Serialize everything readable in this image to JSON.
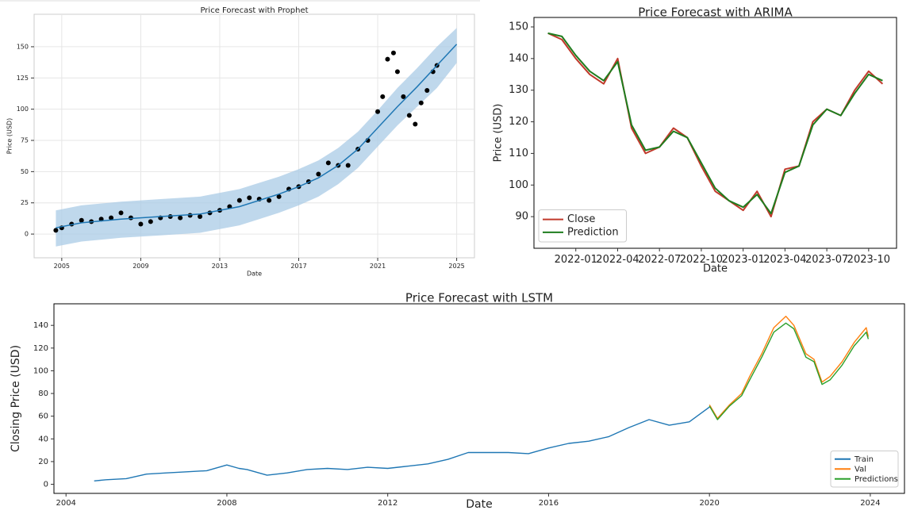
{
  "chart_data": [
    {
      "type": "forecast",
      "title": "Price Forecast with Prophet",
      "x_label": "Date",
      "y_label": "Price (USD)",
      "xlim": [
        2003.6,
        2025.9
      ],
      "xticks": [
        2005,
        2009,
        2013,
        2017,
        2021,
        2025
      ],
      "ylim": [
        -19,
        176
      ],
      "yticks": [
        0,
        25,
        50,
        75,
        100,
        125,
        150
      ],
      "grid": true,
      "actual": {
        "color": "#000000",
        "x": [
          2004.7,
          2005,
          2005.5,
          2006,
          2006.5,
          2007,
          2007.5,
          2008,
          2008.5,
          2009,
          2009.5,
          2010,
          2010.5,
          2011,
          2011.5,
          2012,
          2012.5,
          2013,
          2013.5,
          2014,
          2014.5,
          2015,
          2015.5,
          2016,
          2016.5,
          2017,
          2017.5,
          2018,
          2018.5,
          2019,
          2019.5,
          2020,
          2020.5,
          2021,
          2021.25,
          2021.5,
          2021.8,
          2022,
          2022.3,
          2022.6,
          2022.9,
          2023.2,
          2023.5,
          2023.8,
          2024
        ],
        "values": [
          3,
          5,
          8,
          11,
          10,
          12,
          13,
          17,
          13,
          8,
          10,
          13,
          14,
          13,
          15,
          14,
          17,
          19,
          22,
          27,
          29,
          28,
          27,
          30,
          36,
          38,
          42,
          48,
          57,
          55,
          55,
          68,
          75,
          98,
          110,
          140,
          145,
          130,
          110,
          95,
          88,
          105,
          115,
          130,
          135
        ]
      },
      "forecast": {
        "color": "#1f77b4",
        "band_color": "#a9cbe6",
        "x": [
          2004.7,
          2006,
          2008,
          2010,
          2012,
          2014,
          2015,
          2016,
          2017,
          2018,
          2019,
          2020,
          2021,
          2022,
          2023,
          2024,
          2025
        ],
        "values": [
          5,
          9,
          12,
          14,
          16,
          22,
          27,
          32,
          38,
          45,
          55,
          68,
          85,
          102,
          118,
          135,
          152
        ],
        "lower": [
          -10,
          -6,
          -3,
          -1,
          1,
          7,
          12,
          17,
          23,
          30,
          40,
          53,
          70,
          87,
          102,
          117,
          137
        ],
        "upper": [
          19,
          23,
          26,
          28,
          30,
          36,
          41,
          46,
          52,
          59,
          69,
          82,
          99,
          117,
          133,
          150,
          165
        ]
      }
    },
    {
      "type": "line",
      "title": "Price Forecast with ARIMA",
      "x_label": "Date",
      "y_label": "Price (USD)",
      "xlim": [
        "2021-10",
        "2023-12"
      ],
      "xticks": [
        "2022-01",
        "2022-04",
        "2022-07",
        "2022-10",
        "2023-01",
        "2023-04",
        "2023-07",
        "2023-10"
      ],
      "ylim": [
        80,
        153
      ],
      "yticks": [
        90,
        100,
        110,
        120,
        130,
        140,
        150
      ],
      "grid": false,
      "legend": "lower left",
      "x": [
        "2021-11",
        "2021-12",
        "2022-01",
        "2022-02",
        "2022-03",
        "2022-04",
        "2022-05",
        "2022-06",
        "2022-07",
        "2022-08",
        "2022-09",
        "2022-10",
        "2022-11",
        "2022-12",
        "2023-01",
        "2023-02",
        "2023-03",
        "2023-04",
        "2023-05",
        "2023-06",
        "2023-07",
        "2023-08",
        "2023-09",
        "2023-10",
        "2023-11"
      ],
      "series": [
        {
          "name": "Close",
          "color": "#c0392b",
          "values": [
            148,
            146,
            140,
            135,
            132,
            140,
            118,
            110,
            112,
            118,
            115,
            106,
            98,
            95,
            92,
            98,
            90,
            105,
            106,
            120,
            124,
            122,
            130,
            136,
            132
          ]
        },
        {
          "name": "Prediction",
          "color": "#1e7d1e",
          "values": [
            148,
            147,
            141,
            136,
            133,
            139,
            119,
            111,
            112,
            117,
            115,
            107,
            99,
            95,
            93,
            97,
            91,
            104,
            106,
            119,
            124,
            122,
            129,
            135,
            133
          ]
        }
      ]
    },
    {
      "type": "line",
      "title": "Price Forecast with LSTM",
      "x_label": "Date",
      "y_label": "Closing Price (USD)",
      "xlim": [
        2003.7,
        2024.85
      ],
      "xticks": [
        2004,
        2008,
        2012,
        2016,
        2020,
        2024
      ],
      "ylim": [
        -8,
        159
      ],
      "yticks": [
        0,
        20,
        40,
        60,
        80,
        100,
        120,
        140
      ],
      "grid": false,
      "legend": "lower right",
      "series": [
        {
          "name": "Train",
          "color": "#1f77b4",
          "x": [
            2004.7,
            2005,
            2005.5,
            2006,
            2006.5,
            2007,
            2007.5,
            2008,
            2008.3,
            2008.5,
            2009,
            2009.5,
            2010,
            2010.5,
            2011,
            2011.5,
            2012,
            2012.5,
            2013,
            2013.5,
            2014,
            2014.5,
            2015,
            2015.5,
            2016,
            2016.5,
            2017,
            2017.5,
            2018,
            2018.5,
            2019,
            2019.5,
            2020
          ],
          "values": [
            3,
            4,
            5,
            9,
            10,
            11,
            12,
            17,
            14,
            13,
            8,
            10,
            13,
            14,
            13,
            15,
            14,
            16,
            18,
            22,
            28,
            28,
            28,
            27,
            32,
            36,
            38,
            42,
            50,
            57,
            52,
            55,
            68
          ]
        },
        {
          "name": "Val",
          "color": "#ff7f0e",
          "x": [
            2020,
            2020.2,
            2020.5,
            2020.8,
            2021,
            2021.3,
            2021.6,
            2021.9,
            2022.1,
            2022.4,
            2022.6,
            2022.8,
            2023,
            2023.3,
            2023.6,
            2023.9,
            2023.95
          ],
          "values": [
            70,
            58,
            70,
            80,
            95,
            115,
            138,
            148,
            140,
            115,
            110,
            90,
            95,
            108,
            125,
            138,
            130
          ]
        },
        {
          "name": "Predictions",
          "color": "#2ca02c",
          "x": [
            2020,
            2020.2,
            2020.5,
            2020.8,
            2021,
            2021.3,
            2021.6,
            2021.9,
            2022.1,
            2022.4,
            2022.6,
            2022.8,
            2023,
            2023.3,
            2023.6,
            2023.9,
            2023.95
          ],
          "values": [
            69,
            57,
            69,
            78,
            92,
            112,
            134,
            142,
            137,
            112,
            108,
            88,
            92,
            105,
            122,
            134,
            128
          ]
        }
      ]
    }
  ]
}
